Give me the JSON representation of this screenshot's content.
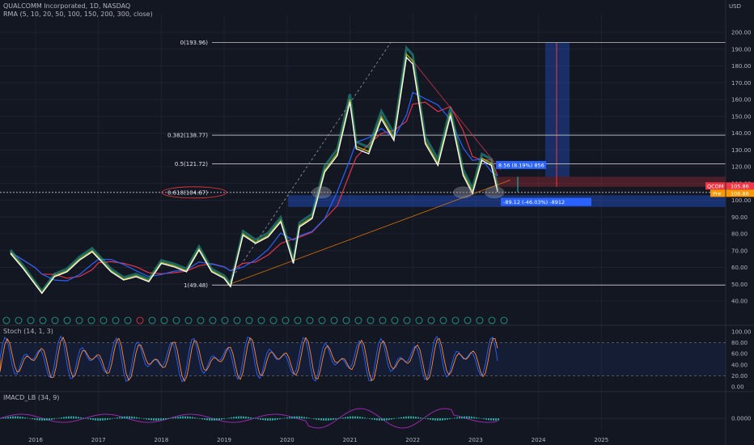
{
  "header": {
    "title": "QUALCOMM Incorporated, 1D, NASDAQ",
    "rma_label": "RMA (5, 10, 20, 50, 100, 150, 200, 300, close)",
    "stoch_label": "Stoch (14, 1, 3)",
    "macd_label": "IMACD_LB (34, 9)",
    "currency": "USD"
  },
  "colors": {
    "background": "#131722",
    "grid": "#1e2230",
    "fib_line": "#c8c8c8",
    "candle_up": "#26a69a",
    "price_line_white": "#ffffff",
    "ma_red": "#e0344a",
    "ma_blue": "#2962ff",
    "stoch_k": "#2962ff",
    "stoch_d": "#ff8a3d",
    "macd_line": "#9c27b0",
    "macd_hist": "#26a69a",
    "zone_blue": "#2962ff",
    "zone_red": "#f23645",
    "qcom_tag": "#f23645",
    "pre_tag": "#ff9800",
    "measure_tag": "#2962ff"
  },
  "chart_data": {
    "type": "line",
    "title": "QUALCOMM Incorporated, 1D, NASDAQ",
    "x_labels": [
      "2016",
      "2017",
      "2018",
      "2019",
      "2020",
      "2021",
      "2022",
      "2023",
      "2024",
      "2025"
    ],
    "price_axis_ticks": [
      "200.00",
      "190.00",
      "180.00",
      "170.00",
      "160.00",
      "150.00",
      "140.00",
      "130.00",
      "120.00",
      "110.00",
      "100.00",
      "90.00",
      "80.00",
      "70.00",
      "60.00",
      "50.00",
      "40.00"
    ],
    "ylim": [
      40,
      200
    ],
    "price_series": {
      "name": "QCOM",
      "x": [
        2015.6,
        2015.8,
        2016.0,
        2016.1,
        2016.3,
        2016.5,
        2016.7,
        2016.9,
        2017.0,
        2017.2,
        2017.4,
        2017.6,
        2017.8,
        2018.0,
        2018.2,
        2018.4,
        2018.6,
        2018.8,
        2019.0,
        2019.1,
        2019.3,
        2019.5,
        2019.7,
        2019.9,
        2020.1,
        2020.2,
        2020.4,
        2020.6,
        2020.8,
        2021.0,
        2021.1,
        2021.3,
        2021.5,
        2021.7,
        2021.9,
        2022.0,
        2022.2,
        2022.4,
        2022.6,
        2022.8,
        2022.95,
        2023.1,
        2023.25,
        2023.35
      ],
      "values": [
        69,
        60,
        50,
        45,
        55,
        58,
        65,
        70,
        66,
        58,
        53,
        55,
        52,
        63,
        61,
        58,
        71,
        58,
        54,
        49,
        80,
        75,
        79,
        88,
        63,
        85,
        90,
        118,
        128,
        160,
        132,
        129,
        150,
        137,
        187,
        183,
        135,
        122,
        152,
        116,
        105,
        125,
        122,
        106
      ]
    },
    "fib_levels": [
      {
        "label": "0(193.96)",
        "value": 193.96
      },
      {
        "label": "0.382(138.77)",
        "value": 138.77
      },
      {
        "label": "0.5(121.72)",
        "value": 121.72
      },
      {
        "label": "0.618(104.67)",
        "value": 104.67
      },
      {
        "label": "1(49.48)",
        "value": 49.48
      }
    ],
    "current_price": {
      "label": "QCOM",
      "value": "105.86"
    },
    "premarket": {
      "label": "Pre",
      "value": "106.86"
    },
    "measure_up": {
      "text": "8.56 (8.19%) 856"
    },
    "measure_down": {
      "text": "-89.12 (-46.03%) -8912"
    },
    "stoch_ticks": [
      "100.00",
      "80.00",
      "60.00",
      "40.00",
      "20.00",
      "0.00"
    ],
    "macd_ticks": [
      "0.0000"
    ]
  }
}
